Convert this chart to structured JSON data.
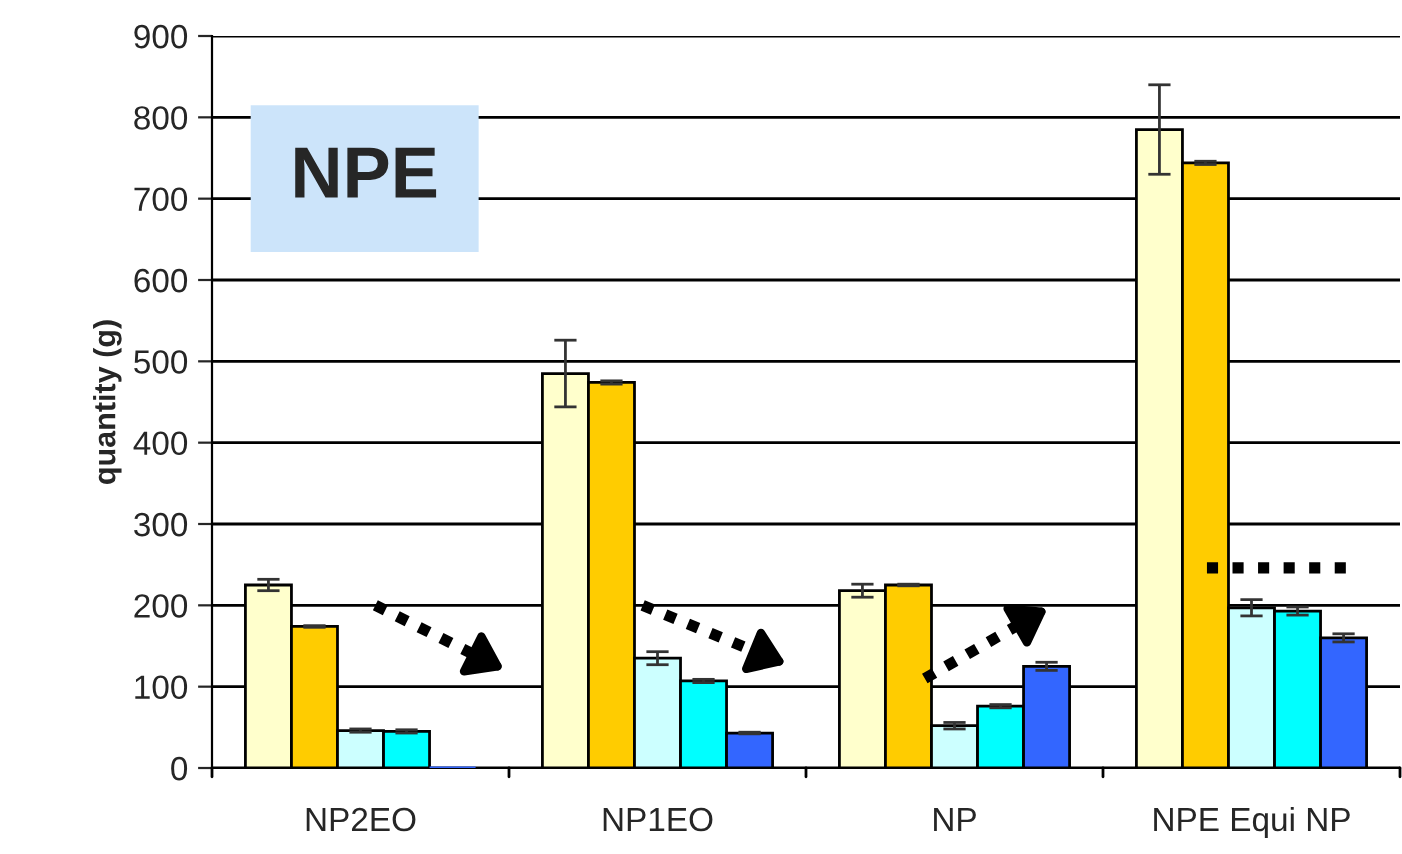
{
  "chart_data": {
    "type": "bar",
    "ylabel": "quantity (g)",
    "categories": [
      "NP2EO",
      "NP1EO",
      "NP",
      "NPE Equi NP"
    ],
    "series": [
      {
        "color": "#ffffcc",
        "values": [
          225,
          485,
          218,
          785
        ],
        "errors": [
          7,
          41,
          8,
          55
        ]
      },
      {
        "color": "#ffcc00",
        "values": [
          174,
          474,
          225,
          744
        ],
        "errors": [
          1,
          2,
          1,
          2
        ]
      },
      {
        "color": "#ccffff",
        "values": [
          46,
          135,
          52,
          197
        ],
        "errors": [
          2,
          8,
          4,
          10
        ]
      },
      {
        "color": "#00ffff",
        "values": [
          45,
          107,
          76,
          193
        ],
        "errors": [
          2,
          2,
          2,
          5
        ]
      },
      {
        "color": "#3366ff",
        "values": [
          0,
          43,
          125,
          160
        ],
        "errors": [
          null,
          1,
          5,
          5
        ]
      }
    ],
    "ylim": [
      0,
      900
    ],
    "yticks": [
      0,
      100,
      200,
      300,
      400,
      500,
      600,
      700,
      800,
      900
    ],
    "grid": "y",
    "legend": false,
    "ref_lines": [
      {
        "axis": "y",
        "value": 246,
        "line_style": "dotted",
        "color": "#000000"
      }
    ],
    "annotations": [
      "NPE"
    ]
  }
}
